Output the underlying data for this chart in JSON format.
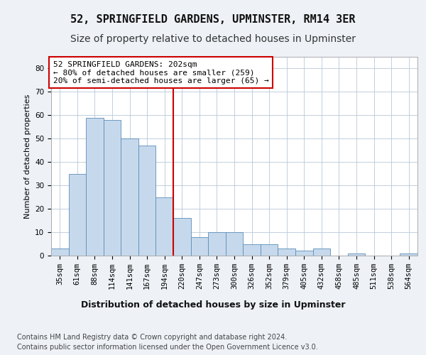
{
  "title1": "52, SPRINGFIELD GARDENS, UPMINSTER, RM14 3ER",
  "title2": "Size of property relative to detached houses in Upminster",
  "xlabel": "Distribution of detached houses by size in Upminster",
  "ylabel": "Number of detached properties",
  "categories": [
    "35sqm",
    "61sqm",
    "88sqm",
    "114sqm",
    "141sqm",
    "167sqm",
    "194sqm",
    "220sqm",
    "247sqm",
    "273sqm",
    "300sqm",
    "326sqm",
    "352sqm",
    "379sqm",
    "405sqm",
    "432sqm",
    "458sqm",
    "485sqm",
    "511sqm",
    "538sqm",
    "564sqm"
  ],
  "values": [
    3,
    35,
    59,
    58,
    50,
    47,
    25,
    16,
    8,
    10,
    10,
    5,
    5,
    3,
    2,
    3,
    0,
    1,
    0,
    0,
    1
  ],
  "bar_color": "#c6d9ec",
  "bar_edge_color": "#5b8db8",
  "vline_x_idx": 6.5,
  "vline_color": "#cc0000",
  "annotation_text": "52 SPRINGFIELD GARDENS: 202sqm\n← 80% of detached houses are smaller (259)\n20% of semi-detached houses are larger (65) →",
  "annotation_box_color": "#ffffff",
  "annotation_box_edge": "#cc0000",
  "ylim": [
    0,
    85
  ],
  "yticks": [
    0,
    10,
    20,
    30,
    40,
    50,
    60,
    70,
    80
  ],
  "footnote": "Contains HM Land Registry data © Crown copyright and database right 2024.\nContains public sector information licensed under the Open Government Licence v3.0.",
  "bg_color": "#eef2f7",
  "plot_bg_color": "#ffffff",
  "grid_color": "#b8c8d8",
  "title_fontsize": 11,
  "subtitle_fontsize": 10,
  "xlabel_fontsize": 9,
  "ylabel_fontsize": 8,
  "tick_fontsize": 7.5,
  "annotation_fontsize": 8,
  "footnote_fontsize": 7
}
